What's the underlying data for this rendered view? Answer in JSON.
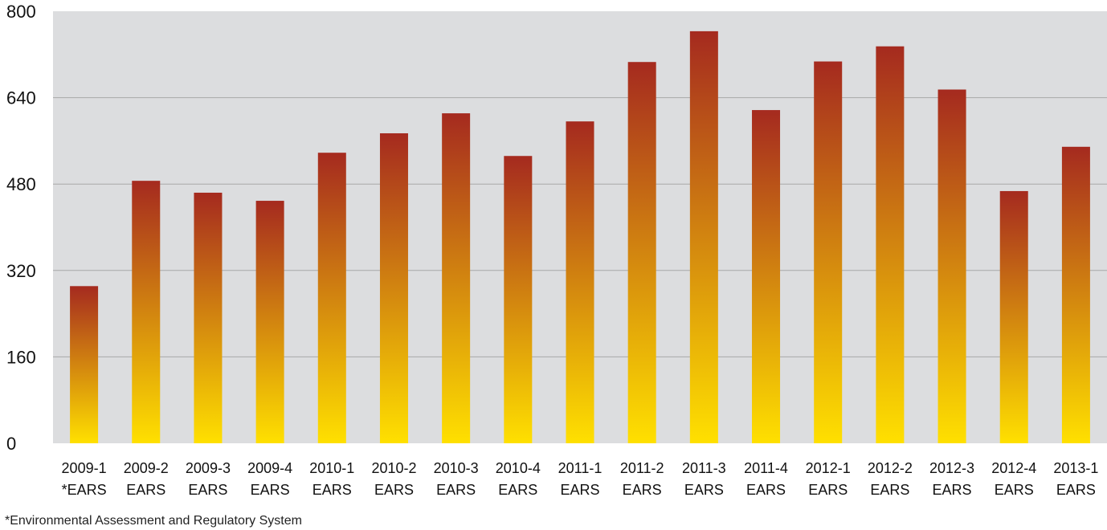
{
  "chart_data": {
    "type": "bar",
    "categories": [
      "2009-1\n*EARS",
      "2009-2\nEARS",
      "2009-3\nEARS",
      "2009-4\nEARS",
      "2010-1\nEARS",
      "2010-2\nEARS",
      "2010-3\nEARS",
      "2010-4\nEARS",
      "2011-1\nEARS",
      "2011-2\nEARS",
      "2011-3\nEARS",
      "2011-4\nEARS",
      "2012-1\nEARS",
      "2012-2\nEARS",
      "2012-3\nEARS",
      "2012-4\nEARS",
      "2013-1\nEARS"
    ],
    "values": [
      291,
      486,
      464,
      449,
      538,
      574,
      611,
      532,
      596,
      706,
      763,
      617,
      707,
      735,
      655,
      467,
      549
    ],
    "yticks": [
      0,
      160,
      320,
      480,
      640,
      800
    ],
    "ylim": [
      0,
      800
    ],
    "grid": true,
    "colors": {
      "bar_top": "#a52a1f",
      "bar_bottom": "#ffe000",
      "plot_bg": "#dcdddf",
      "grid": "#a8a8a8"
    }
  },
  "footnote": "*Environmental Assessment and Regulatory System"
}
